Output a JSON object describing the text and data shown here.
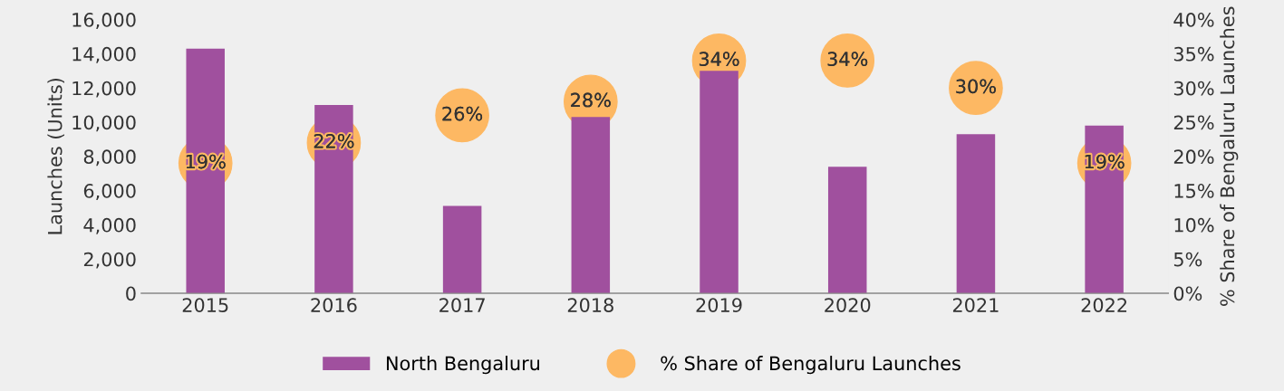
{
  "chart_data": {
    "type": "bar",
    "ylabel": "Launches (Units)",
    "y2label": "% Share of Bengaluru Launches",
    "categories": [
      "2015",
      "2016",
      "2017",
      "2018",
      "2019",
      "2020",
      "2021",
      "2022"
    ],
    "series": [
      {
        "name": "North Bengaluru",
        "color": "#a0509e",
        "values": [
          14300,
          11000,
          5100,
          10300,
          13000,
          7400,
          9300,
          9800
        ]
      },
      {
        "name": "% Share of Bengaluru Launches",
        "type": "scatter",
        "axis": "y2",
        "color": "#fdb863",
        "marker": "circle",
        "data_labels": true,
        "value_labels": [
          "19%",
          "22%",
          "26%",
          "28%",
          "34%",
          "34%",
          "30%",
          "19%"
        ],
        "values": [
          19,
          22,
          26,
          28,
          34,
          34,
          30,
          19
        ]
      }
    ],
    "ylim": [
      0,
      16000
    ],
    "yticks": [
      {
        "value": 0,
        "label": "0"
      },
      {
        "value": 2000,
        "label": "2,000"
      },
      {
        "value": 4000,
        "label": "4,000"
      },
      {
        "value": 6000,
        "label": "6,000"
      },
      {
        "value": 8000,
        "label": "8,000"
      },
      {
        "value": 10000,
        "label": "10,000"
      },
      {
        "value": 12000,
        "label": "12,000"
      },
      {
        "value": 14000,
        "label": "14,000"
      },
      {
        "value": 16000,
        "label": "16,000"
      }
    ],
    "y2lim": [
      0,
      40
    ],
    "y2ticks": [
      {
        "value": 0,
        "label": "0%"
      },
      {
        "value": 5,
        "label": "5%"
      },
      {
        "value": 10,
        "label": "10%"
      },
      {
        "value": 15,
        "label": "15%"
      },
      {
        "value": 20,
        "label": "20%"
      },
      {
        "value": 25,
        "label": "25%"
      },
      {
        "value": 30,
        "label": "30%"
      },
      {
        "value": 35,
        "label": "35%"
      },
      {
        "value": 40,
        "label": "40%"
      }
    ],
    "grid": false,
    "legend": "bottom"
  }
}
